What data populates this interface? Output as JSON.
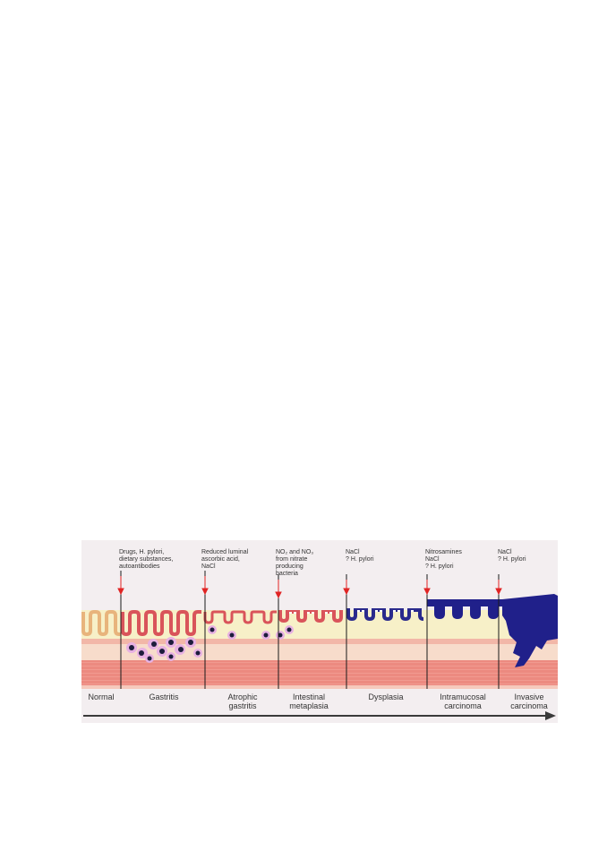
{
  "colors": {
    "background": "#f3eef0",
    "lumen": "#f4f0f1",
    "mucosa": "#f7f0c8",
    "muscularis": "#ec8a80",
    "band_light": "#f7dccb",
    "normal_gland": "#e8b47c",
    "gastritis_gland": "#d9545a",
    "dysplasia": "#2a2a8c",
    "carcinoma": "#20208a",
    "inflammatory_cell": "#e7b1e2",
    "nucleus": "#1d1d3c",
    "arrow": "#e02424",
    "divider": "#1a1a1a",
    "text": "#333333"
  },
  "causes": [
    {
      "lines": [
        "Drugs, H. pylori,",
        "dietary substances,",
        "autoantibodies"
      ]
    },
    {
      "lines": [
        "Reduced luminal",
        "ascorbic acid,",
        "NaCl"
      ]
    },
    {
      "lines": [
        "NO₂ and NO₃",
        "from nitrate",
        "producing",
        "bacteria"
      ]
    },
    {
      "lines": [
        "NaCl",
        "? H. pylori"
      ]
    },
    {
      "lines": [
        "Nitrosamines",
        "NaCl",
        "? H. pylori"
      ]
    },
    {
      "lines": [
        "NaCl",
        "? H. pylori"
      ]
    }
  ],
  "stages": [
    {
      "lines": [
        "Normal"
      ]
    },
    {
      "lines": [
        "Gastritis"
      ]
    },
    {
      "lines": [
        "Atrophic",
        "gastritis"
      ]
    },
    {
      "lines": [
        "Intestinal",
        "metaplasia"
      ]
    },
    {
      "lines": [
        "Dysplasia"
      ]
    },
    {
      "lines": [
        "Intramucosal",
        "carcinoma"
      ]
    },
    {
      "lines": [
        "Invasive",
        "carcinoma"
      ]
    }
  ]
}
